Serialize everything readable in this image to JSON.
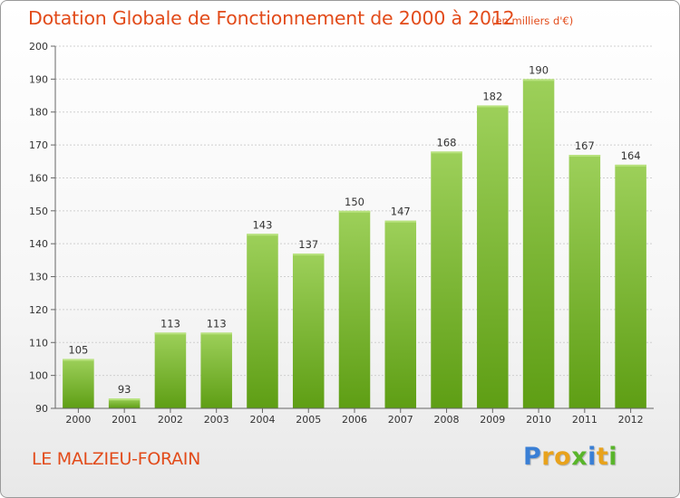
{
  "title": "Dotation Globale de Fonctionnement de 2000 à 2012",
  "unit_note": "(en milliers d'€)",
  "commune": "LE MALZIEU-FORAIN",
  "logo": {
    "text": "Proxiti",
    "letter_colors": [
      "#3a7fd5",
      "#e8a21c",
      "#e8a21c",
      "#59b52b",
      "#3a7fd5",
      "#e8a21c",
      "#59b52b"
    ]
  },
  "colors": {
    "text_accent": "#e24b1a",
    "bar_light": "#9dd05a",
    "bar_dark": "#5e9e14",
    "axis": "#666666",
    "grid": "#d0d0d0"
  },
  "chart_data": {
    "type": "bar",
    "categories": [
      "2000",
      "2001",
      "2002",
      "2003",
      "2004",
      "2005",
      "2006",
      "2007",
      "2008",
      "2009",
      "2010",
      "2011",
      "2012"
    ],
    "values": [
      105,
      93,
      113,
      113,
      143,
      137,
      150,
      147,
      168,
      182,
      190,
      167,
      164
    ],
    "ylim": [
      90,
      200
    ],
    "yticks": [
      90,
      100,
      110,
      120,
      130,
      140,
      150,
      160,
      170,
      180,
      190,
      200
    ],
    "title": "Dotation Globale de Fonctionnement de 2000 à 2012",
    "xlabel": "",
    "ylabel": "",
    "grid": true,
    "data_labels": true
  }
}
